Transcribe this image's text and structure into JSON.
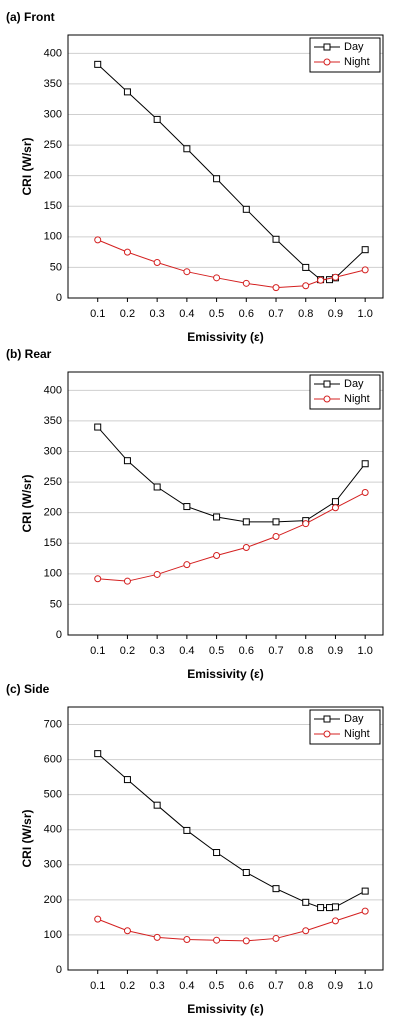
{
  "chart_data": [
    {
      "type": "line",
      "title": "(a) Front",
      "x_label": "Emissivity (ε)",
      "y_label": "CRI (W/sr)",
      "legend": "upper right",
      "xlim": [
        0,
        1.06
      ],
      "ylim": [
        0,
        430
      ],
      "xticks": [
        0.1,
        0.2,
        0.3,
        0.4,
        0.5,
        0.6,
        0.7,
        0.8,
        0.9,
        {
          "value": 1,
          "label": "1.0"
        }
      ],
      "yticks": [
        0,
        50,
        100,
        150,
        200,
        250,
        300,
        350,
        400
      ],
      "series": [
        {
          "name": "Day",
          "color": "#000000",
          "marker": "square",
          "x": [
            0.1,
            0.2,
            0.3,
            0.4,
            0.5,
            0.6,
            0.7,
            0.8,
            0.85,
            0.88,
            0.9,
            1.0
          ],
          "values": [
            382,
            337,
            292,
            244,
            195,
            145,
            96,
            50,
            30,
            30,
            33,
            79
          ]
        },
        {
          "name": "Night",
          "color": "#d42020",
          "marker": "circle",
          "x": [
            0.1,
            0.2,
            0.3,
            0.4,
            0.5,
            0.6,
            0.7,
            0.8,
            0.85,
            0.9,
            1.0
          ],
          "values": [
            95,
            75,
            58,
            43,
            33,
            24,
            17,
            20,
            29,
            34,
            46
          ]
        }
      ]
    },
    {
      "type": "line",
      "title": "(b) Rear",
      "x_label": "Emissivity (ε)",
      "y_label": "CRI (W/sr)",
      "legend": "upper right",
      "xlim": [
        0,
        1.06
      ],
      "ylim": [
        0,
        430
      ],
      "xticks": [
        0.1,
        0.2,
        0.3,
        0.4,
        0.5,
        0.6,
        0.7,
        0.8,
        0.9,
        {
          "value": 1,
          "label": "1.0"
        }
      ],
      "yticks": [
        0,
        50,
        100,
        150,
        200,
        250,
        300,
        350,
        400
      ],
      "series": [
        {
          "name": "Day",
          "color": "#000000",
          "marker": "square",
          "x": [
            0.1,
            0.2,
            0.3,
            0.4,
            0.5,
            0.6,
            0.7,
            0.8,
            0.9,
            1.0
          ],
          "values": [
            340,
            285,
            242,
            210,
            193,
            185,
            185,
            187,
            218,
            280
          ]
        },
        {
          "name": "Night",
          "color": "#d42020",
          "marker": "circle",
          "x": [
            0.1,
            0.2,
            0.3,
            0.4,
            0.5,
            0.6,
            0.7,
            0.8,
            0.9,
            1.0
          ],
          "values": [
            92,
            88,
            99,
            115,
            130,
            143,
            161,
            182,
            208,
            233
          ]
        }
      ]
    },
    {
      "type": "line",
      "title": "(c) Side",
      "x_label": "Emissivity (ε)",
      "y_label": "CRI (W/sr)",
      "legend": "upper right",
      "xlim": [
        0,
        1.06
      ],
      "ylim": [
        0,
        750
      ],
      "xticks": [
        0.1,
        0.2,
        0.3,
        0.4,
        0.5,
        0.6,
        0.7,
        0.8,
        0.9,
        {
          "value": 1,
          "label": "1.0"
        }
      ],
      "yticks": [
        0,
        100,
        200,
        300,
        400,
        500,
        600,
        700
      ],
      "series": [
        {
          "name": "Day",
          "color": "#000000",
          "marker": "square",
          "x": [
            0.1,
            0.2,
            0.3,
            0.4,
            0.5,
            0.6,
            0.7,
            0.8,
            0.85,
            0.88,
            0.9,
            1.0
          ],
          "values": [
            617,
            543,
            470,
            398,
            335,
            278,
            232,
            193,
            178,
            178,
            180,
            225
          ]
        },
        {
          "name": "Night",
          "color": "#d42020",
          "marker": "circle",
          "x": [
            0.1,
            0.2,
            0.3,
            0.4,
            0.5,
            0.6,
            0.7,
            0.8,
            0.9,
            1.0
          ],
          "values": [
            145,
            112,
            93,
            87,
            85,
            83,
            90,
            112,
            140,
            168
          ]
        }
      ]
    }
  ]
}
